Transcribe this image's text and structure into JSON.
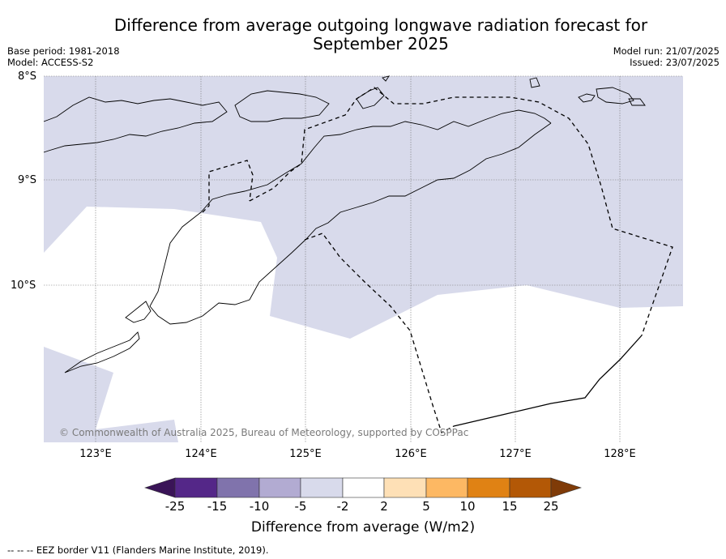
{
  "title_line1": "Difference from average outgoing longwave radiation forecast for",
  "title_line2": "September 2025",
  "base_period": "Base period: 1981-2018",
  "model": "Model: ACCESS-S2",
  "model_run": "Model run: 21/07/2025",
  "issued": "Issued: 23/07/2025",
  "lat_labels": [
    "8°S",
    "9°S",
    "10°S"
  ],
  "lon_labels": [
    "123°E",
    "124°E",
    "125°E",
    "126°E",
    "127°E",
    "128°E"
  ],
  "copyright": "© Commonwealth of Australia 2025, Bureau of Meteorology, supported by COSPPac",
  "colorbar": {
    "ticks": [
      "-25",
      "-15",
      "-10",
      "-5",
      "-2",
      "2",
      "5",
      "10",
      "15",
      "25"
    ],
    "colors": [
      "#3a1457",
      "#542788",
      "#8073ac",
      "#b2abd2",
      "#d8daeb",
      "#ffffff",
      "#fee0b6",
      "#fdb863",
      "#e08214",
      "#b35806",
      "#7f3b08"
    ],
    "label": "Difference from average (W/m2)"
  },
  "map_colors": {
    "lavender": "#d8daeb",
    "white": "#ffffff"
  },
  "footnote": "--  --  -- EEZ border V11 (Flanders Marine Institute, 2019)."
}
